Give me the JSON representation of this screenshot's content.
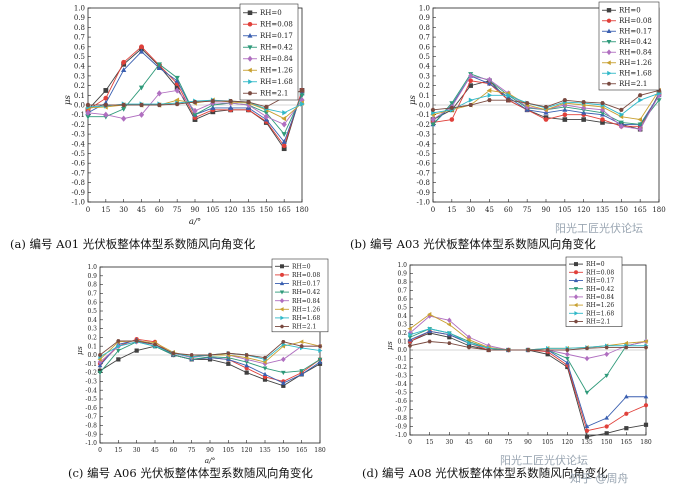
{
  "figure": {
    "legend_labels": [
      "RH=0",
      "RH=0.08",
      "RH=0.17",
      "RH=0.42",
      "RH=0.84",
      "RH=1.26",
      "RH=1.68",
      "RH=2.1"
    ],
    "series_colors": [
      "#404040",
      "#e0403a",
      "#3a5fb0",
      "#2f9a7a",
      "#b06fc0",
      "#c8a030",
      "#30b8c8",
      "#7a4a40"
    ],
    "series_markers": [
      "square",
      "circle",
      "triangle-up",
      "triangle-down",
      "diamond",
      "triangle-left",
      "triangle-right",
      "hexagon"
    ]
  },
  "watermarks": {
    "a03": "阳光工匠光伏论坛",
    "a08_top": "阳光工匠光伏论坛",
    "a08_bottom": "知乎 @周舟"
  },
  "chart_data": [
    {
      "id": "A01",
      "type": "line",
      "caption": "(a)  编号 A01 光伏板整体体型系数随风向角变化",
      "ylabel": "μs",
      "xlabel": "a/°",
      "ylim": [
        -1.0,
        1.0
      ],
      "xlim": [
        0,
        180
      ],
      "legend": "top-right",
      "x": [
        0,
        15,
        30,
        45,
        60,
        75,
        90,
        105,
        120,
        135,
        150,
        165,
        180
      ],
      "series": [
        {
          "name": "RH=0",
          "values": [
            -0.05,
            0.15,
            0.42,
            0.58,
            0.4,
            0.18,
            -0.15,
            -0.07,
            -0.05,
            -0.05,
            -0.18,
            -0.45,
            0.15
          ]
        },
        {
          "name": "RH=0.08",
          "values": [
            -0.05,
            0.07,
            0.44,
            0.6,
            0.41,
            0.22,
            -0.13,
            -0.05,
            -0.05,
            -0.05,
            -0.17,
            -0.42,
            0.15
          ]
        },
        {
          "name": "RH=0.17",
          "values": [
            -0.08,
            0.02,
            0.36,
            0.55,
            0.38,
            0.25,
            -0.1,
            -0.03,
            -0.03,
            -0.03,
            -0.15,
            -0.38,
            0.12
          ]
        },
        {
          "name": "RH=0.42",
          "values": [
            -0.12,
            -0.12,
            -0.04,
            0.18,
            0.42,
            0.28,
            -0.1,
            0.0,
            0.02,
            0.0,
            -0.08,
            -0.3,
            0.1
          ]
        },
        {
          "name": "RH=0.84",
          "values": [
            -0.08,
            -0.1,
            -0.14,
            -0.1,
            0.12,
            0.15,
            -0.06,
            0.02,
            0.02,
            0.0,
            -0.12,
            -0.2,
            0.05
          ]
        },
        {
          "name": "RH=1.26",
          "values": [
            -0.03,
            -0.02,
            0.0,
            0.0,
            0.0,
            0.05,
            0.02,
            0.05,
            0.03,
            0.02,
            -0.05,
            -0.14,
            0.02
          ]
        },
        {
          "name": "RH=1.68",
          "values": [
            -0.02,
            -0.01,
            0.01,
            0.01,
            0.01,
            0.02,
            0.04,
            0.05,
            0.04,
            0.03,
            -0.04,
            -0.08,
            0.01
          ]
        },
        {
          "name": "RH=2.1",
          "values": [
            0.0,
            0.0,
            0.0,
            0.0,
            0.0,
            0.01,
            0.03,
            0.04,
            0.04,
            0.03,
            -0.02,
            0.08,
            0.15
          ]
        }
      ]
    },
    {
      "id": "A03",
      "type": "line",
      "caption": "(b)  编号 A03 光伏板整体体型系数随风向角变化",
      "ylabel": "μs",
      "xlabel": "",
      "ylim": [
        -1.0,
        1.0
      ],
      "xlim": [
        0,
        180
      ],
      "legend": "top-right",
      "x": [
        0,
        15,
        30,
        45,
        60,
        75,
        90,
        105,
        120,
        135,
        150,
        165,
        180
      ],
      "series": [
        {
          "name": "RH=0",
          "values": [
            -0.15,
            -0.05,
            0.2,
            0.25,
            0.05,
            -0.05,
            -0.13,
            -0.15,
            -0.15,
            -0.18,
            -0.2,
            -0.25,
            0.12
          ]
        },
        {
          "name": "RH=0.08",
          "values": [
            -0.18,
            -0.15,
            0.25,
            0.22,
            0.05,
            -0.05,
            -0.15,
            -0.1,
            -0.1,
            -0.15,
            -0.22,
            -0.22,
            0.1
          ]
        },
        {
          "name": "RH=0.17",
          "values": [
            -0.2,
            0.0,
            0.3,
            0.22,
            0.08,
            -0.05,
            -0.08,
            -0.05,
            -0.08,
            -0.1,
            -0.2,
            -0.2,
            0.1
          ]
        },
        {
          "name": "RH=0.42",
          "values": [
            -0.2,
            0.02,
            0.32,
            0.25,
            0.1,
            -0.03,
            -0.05,
            -0.02,
            -0.05,
            -0.08,
            -0.18,
            -0.2,
            0.05
          ]
        },
        {
          "name": "RH=0.84",
          "values": [
            -0.15,
            -0.02,
            0.3,
            0.26,
            0.12,
            -0.02,
            -0.05,
            0.0,
            -0.03,
            -0.05,
            -0.22,
            -0.25,
            0.1
          ]
        },
        {
          "name": "RH=1.26",
          "values": [
            -0.1,
            -0.05,
            0.0,
            0.15,
            0.12,
            0.0,
            -0.05,
            0.02,
            0.0,
            -0.02,
            -0.12,
            -0.15,
            0.15
          ]
        },
        {
          "name": "RH=1.68",
          "values": [
            -0.08,
            -0.05,
            0.05,
            0.1,
            0.1,
            0.02,
            -0.03,
            0.03,
            0.02,
            0.0,
            -0.1,
            0.05,
            0.12
          ]
        },
        {
          "name": "RH=2.1",
          "values": [
            -0.05,
            -0.03,
            0.0,
            0.05,
            0.05,
            0.02,
            -0.02,
            0.05,
            0.03,
            0.02,
            -0.05,
            0.1,
            0.15
          ]
        }
      ]
    },
    {
      "id": "A06",
      "type": "line",
      "caption": "(c)  编号 A06 光伏板整体体型系数随风向角变化",
      "ylabel": "μs",
      "xlabel": "a/°",
      "ylim": [
        -1.0,
        1.0
      ],
      "xlim": [
        0,
        180
      ],
      "legend": "top-right",
      "x": [
        0,
        15,
        30,
        45,
        60,
        75,
        90,
        105,
        120,
        135,
        150,
        165,
        180
      ],
      "series": [
        {
          "name": "RH=0",
          "values": [
            -0.18,
            -0.05,
            0.05,
            0.1,
            0.0,
            -0.05,
            -0.05,
            -0.1,
            -0.2,
            -0.28,
            -0.35,
            -0.22,
            -0.1
          ]
        },
        {
          "name": "RH=0.08",
          "values": [
            -0.1,
            0.1,
            0.18,
            0.15,
            0.0,
            -0.05,
            -0.03,
            -0.05,
            -0.15,
            -0.25,
            -0.3,
            -0.2,
            -0.05
          ]
        },
        {
          "name": "RH=0.17",
          "values": [
            -0.12,
            0.12,
            0.17,
            0.12,
            0.0,
            -0.05,
            -0.03,
            -0.05,
            -0.12,
            -0.22,
            -0.32,
            -0.22,
            -0.08
          ]
        },
        {
          "name": "RH=0.42",
          "values": [
            -0.2,
            0.05,
            0.15,
            0.1,
            0.0,
            -0.05,
            -0.02,
            -0.03,
            -0.08,
            -0.15,
            -0.2,
            -0.18,
            -0.05
          ]
        },
        {
          "name": "RH=0.84",
          "values": [
            -0.08,
            0.1,
            0.15,
            0.12,
            0.02,
            -0.03,
            0.0,
            0.0,
            -0.05,
            -0.1,
            -0.05,
            0.1,
            0.1
          ]
        },
        {
          "name": "RH=1.26",
          "values": [
            -0.05,
            0.15,
            0.16,
            0.14,
            0.03,
            -0.02,
            0.0,
            0.0,
            -0.03,
            -0.08,
            0.1,
            0.15,
            0.1
          ]
        },
        {
          "name": "RH=1.68",
          "values": [
            -0.02,
            0.1,
            0.15,
            0.1,
            0.02,
            -0.02,
            0.0,
            0.02,
            0.0,
            -0.05,
            0.12,
            0.08,
            0.05
          ]
        },
        {
          "name": "RH=2.1",
          "values": [
            0.0,
            0.16,
            0.16,
            0.12,
            0.02,
            0.0,
            0.0,
            0.02,
            0.0,
            -0.03,
            0.15,
            0.1,
            0.1
          ]
        }
      ]
    },
    {
      "id": "A08",
      "type": "line",
      "caption": "(d)  编号 A08 光伏板整体体型系数随风向角变化",
      "ylabel": "μs",
      "xlabel": "",
      "ylim": [
        -1.0,
        1.0
      ],
      "xlim": [
        0,
        180
      ],
      "legend": "top-right",
      "x": [
        0,
        15,
        30,
        45,
        60,
        75,
        90,
        105,
        120,
        135,
        150,
        165,
        180
      ],
      "series": [
        {
          "name": "RH=0",
          "values": [
            0.1,
            0.2,
            0.15,
            0.05,
            0.0,
            0.0,
            0.0,
            -0.05,
            -0.2,
            -1.02,
            -0.98,
            -0.92,
            -0.88
          ]
        },
        {
          "name": "RH=0.08",
          "values": [
            0.1,
            0.22,
            0.18,
            0.08,
            0.0,
            0.0,
            0.0,
            -0.02,
            -0.18,
            -0.95,
            -0.9,
            -0.75,
            -0.65
          ]
        },
        {
          "name": "RH=0.17",
          "values": [
            0.12,
            0.22,
            0.18,
            0.08,
            0.02,
            0.0,
            0.0,
            0.0,
            -0.15,
            -0.9,
            -0.8,
            -0.55,
            -0.55
          ]
        },
        {
          "name": "RH=0.42",
          "values": [
            0.15,
            0.25,
            0.2,
            0.1,
            0.02,
            0.0,
            0.0,
            0.0,
            -0.1,
            -0.5,
            -0.3,
            0.05,
            0.1
          ]
        },
        {
          "name": "RH=0.84",
          "values": [
            0.2,
            0.4,
            0.35,
            0.15,
            0.05,
            0.0,
            0.0,
            0.0,
            -0.05,
            -0.1,
            -0.05,
            0.05,
            0.1
          ]
        },
        {
          "name": "RH=1.26",
          "values": [
            0.25,
            0.42,
            0.3,
            0.12,
            0.03,
            0.0,
            0.0,
            0.02,
            0.02,
            0.03,
            0.05,
            0.08,
            0.1
          ]
        },
        {
          "name": "RH=1.68",
          "values": [
            0.18,
            0.25,
            0.2,
            0.08,
            0.02,
            0.0,
            0.0,
            0.02,
            0.02,
            0.03,
            0.05,
            0.05,
            0.05
          ]
        },
        {
          "name": "RH=2.1",
          "values": [
            0.05,
            0.1,
            0.08,
            0.03,
            0.0,
            0.0,
            0.0,
            0.0,
            0.0,
            0.02,
            0.03,
            0.03,
            0.03
          ]
        }
      ]
    }
  ]
}
